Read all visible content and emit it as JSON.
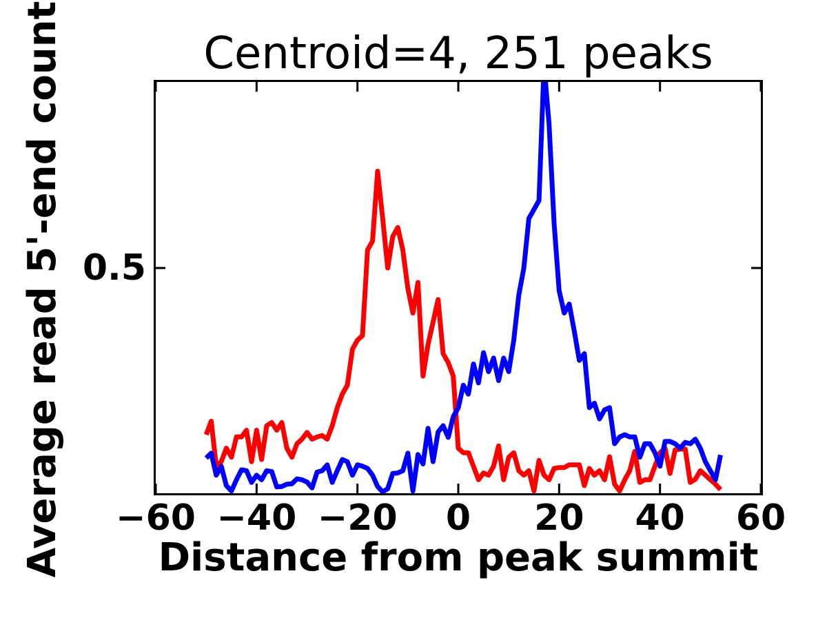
{
  "chart_data": {
    "type": "line",
    "title": "Centroid=4, 251 peaks",
    "xlabel": "Distance from peak summit",
    "ylabel": "Average read 5'-end count",
    "xlim": [
      -60,
      60
    ],
    "ylim": [
      0,
      0.913
    ],
    "grid": false,
    "legend_position": "none",
    "tick_direction": "in",
    "axis_color": "#000000",
    "xticks": [
      {
        "value": -60,
        "label": "−60"
      },
      {
        "value": -40,
        "label": "−40"
      },
      {
        "value": -20,
        "label": "−20"
      },
      {
        "value": 0,
        "label": "0"
      },
      {
        "value": 20,
        "label": "20"
      },
      {
        "value": 40,
        "label": "40"
      },
      {
        "value": 60,
        "label": "60"
      }
    ],
    "yticks": [
      {
        "value": 0.5,
        "label": "0.5"
      }
    ],
    "x": [
      -50,
      -49,
      -48,
      -47,
      -46,
      -45,
      -44,
      -43,
      -42,
      -41,
      -40,
      -39,
      -38,
      -37,
      -36,
      -35,
      -34,
      -33,
      -32,
      -31,
      -30,
      -29,
      -28,
      -27,
      -26,
      -25,
      -24,
      -23,
      -22,
      -21,
      -20,
      -19,
      -18,
      -17,
      -16,
      -15,
      -14,
      -13,
      -12,
      -11,
      -10,
      -9,
      -8,
      -7,
      -6,
      -5,
      -4,
      -3,
      -2,
      -1,
      0,
      1,
      2,
      3,
      4,
      5,
      6,
      7,
      8,
      9,
      10,
      11,
      12,
      13,
      14,
      15,
      16,
      17,
      18,
      19,
      20,
      21,
      22,
      23,
      24,
      25,
      26,
      27,
      28,
      29,
      30,
      31,
      32,
      33,
      34,
      35,
      36,
      37,
      38,
      39,
      40,
      41,
      42,
      43,
      44,
      45,
      46,
      47,
      48,
      49,
      50,
      51,
      52
    ],
    "series": [
      {
        "name": "red",
        "color": "#ff0000",
        "peak_x": -16,
        "peak_value": 0.715,
        "values": [
          0.13,
          0.16,
          0.06,
          0.07,
          0.1,
          0.08,
          0.125,
          0.125,
          0.14,
          0.07,
          0.14,
          0.075,
          0.15,
          0.157,
          0.14,
          0.157,
          0.1,
          0.08,
          0.11,
          0.12,
          0.135,
          0.12,
          0.125,
          0.128,
          0.12,
          0.15,
          0.19,
          0.22,
          0.24,
          0.32,
          0.34,
          0.35,
          0.54,
          0.56,
          0.715,
          0.61,
          0.5,
          0.57,
          0.59,
          0.54,
          0.455,
          0.4,
          0.468,
          0.26,
          0.33,
          0.38,
          0.43,
          0.31,
          0.29,
          0.26,
          0.1,
          0.09,
          0.09,
          0.06,
          0.03,
          0.045,
          0.04,
          0.06,
          0.105,
          0.03,
          0.08,
          0.09,
          0.05,
          0.04,
          0.05,
          0.005,
          0.073,
          0.04,
          0.03,
          0.055,
          0.057,
          0.057,
          0.063,
          0.063,
          0.063,
          0.017,
          0.055,
          0.04,
          0.05,
          0.03,
          0.081,
          0.02,
          0.005,
          0.03,
          0.05,
          0.093,
          0.024,
          0.03,
          0.03,
          0.06,
          0.09,
          0.1,
          0.044,
          0.096,
          0.098,
          0.098,
          0.024,
          0.031,
          0.05,
          0.04,
          0.03,
          0.02,
          0.008
        ]
      },
      {
        "name": "blue",
        "color": "#0000ff",
        "peak_x": 17,
        "peak_value": 0.95,
        "peak_clipped_at_top": true,
        "values": [
          0.078,
          0.089,
          0.04,
          0.06,
          0.017,
          0.005,
          0.03,
          0.052,
          0.05,
          0.024,
          0.04,
          0.03,
          0.05,
          0.048,
          0.014,
          0.015,
          0.02,
          0.021,
          0.032,
          0.03,
          0.025,
          0.012,
          0.047,
          0.05,
          0.063,
          0.024,
          0.05,
          0.075,
          0.07,
          0.04,
          0.063,
          0.06,
          0.055,
          0.04,
          0.015,
          0.003,
          0.01,
          0.044,
          0.045,
          0.05,
          0.089,
          0.005,
          0.086,
          0.065,
          0.144,
          0.07,
          0.136,
          0.15,
          0.124,
          0.17,
          0.19,
          0.24,
          0.22,
          0.287,
          0.245,
          0.312,
          0.27,
          0.3,
          0.25,
          0.3,
          0.27,
          0.34,
          0.44,
          0.5,
          0.61,
          0.63,
          0.65,
          0.95,
          0.82,
          0.6,
          0.45,
          0.4,
          0.42,
          0.36,
          0.295,
          0.31,
          0.19,
          0.2,
          0.165,
          0.185,
          0.19,
          0.11,
          0.125,
          0.13,
          0.125,
          0.125,
          0.08,
          0.11,
          0.11,
          0.09,
          0.06,
          0.115,
          0.115,
          0.11,
          0.1,
          0.113,
          0.11,
          0.12,
          0.1,
          0.07,
          0.05,
          0.03,
          0.085
        ]
      }
    ]
  }
}
